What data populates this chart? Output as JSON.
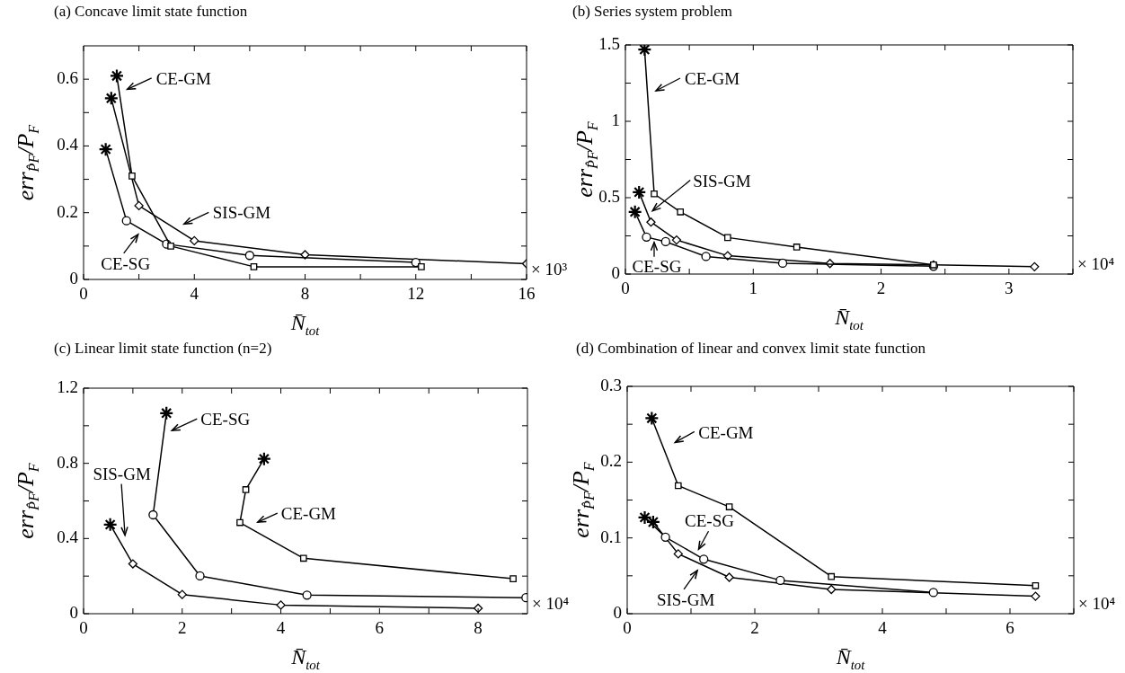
{
  "chart_data": [
    {
      "type": "line",
      "title": "(a) Concave limit state function",
      "xlabel": "N̄$_{tot}$",
      "ylabel": "err$_{P̂F}$/P$_{F}$",
      "xlim": [
        0,
        16
      ],
      "ylim": [
        0,
        0.7
      ],
      "xticks": [
        0,
        {
          "value": 2,
          "label": null
        },
        4,
        {
          "value": 6,
          "label": null
        },
        8,
        {
          "value": 10,
          "label": null
        },
        12,
        {
          "value": 14,
          "label": null
        },
        16
      ],
      "yticks": [
        0,
        {
          "value": 0.1,
          "label": null
        },
        0.2,
        {
          "value": 0.3,
          "label": null
        },
        0.4,
        {
          "value": 0.5,
          "label": null
        },
        0.6
      ],
      "series": [
        {
          "marker": "square",
          "color": "#000000",
          "x": [
            1.2,
            1.75,
            3.15,
            6.15,
            12.2
          ],
          "values": [
            0.61,
            0.31,
            0.1,
            0.038,
            0.038
          ]
        },
        {
          "marker": "circle",
          "color": "#000000",
          "x": [
            0.8,
            1.55,
            3.0,
            6.0,
            12.0
          ],
          "values": [
            0.39,
            0.176,
            0.106,
            0.072,
            0.051
          ]
        },
        {
          "marker": "diamond",
          "color": "#000000",
          "x": [
            1.0,
            2.0,
            4.0,
            8.0,
            16.0
          ],
          "values": [
            0.543,
            0.221,
            0.116,
            0.074,
            0.047
          ]
        },
        {
          "type": "scatter",
          "marker": "cross",
          "color": "#000000",
          "x": [
            1.2,
            0.8,
            1.0
          ],
          "values": [
            0.61,
            0.39,
            0.543
          ]
        }
      ],
      "annotations": [
        "CE-GM",
        "SIS-GM",
        "CE-SG",
        "× 10³"
      ]
    },
    {
      "type": "line",
      "title": "(b) Series system problem",
      "xlabel": "N̄$_{tot}$",
      "ylabel": "err$_{P̂F}$/P$_{F}$",
      "xlim": [
        0,
        3.5
      ],
      "ylim": [
        0,
        1.5
      ],
      "xticks": [
        0,
        {
          "value": 0.5,
          "label": null
        },
        1,
        {
          "value": 1.5,
          "label": null
        },
        2,
        {
          "value": 2.5,
          "label": null
        },
        3,
        {
          "value": 3.5,
          "label": null
        }
      ],
      "yticks": [
        0,
        {
          "value": 0.25,
          "label": null
        },
        0.5,
        {
          "value": 0.75,
          "label": null
        },
        1,
        {
          "value": 1.25,
          "label": null
        },
        1.5
      ],
      "series": [
        {
          "marker": "square",
          "color": "#000000",
          "x": [
            0.15,
            0.225,
            0.43,
            0.8,
            1.34,
            2.41
          ],
          "values": [
            1.47,
            0.525,
            0.407,
            0.239,
            0.177,
            0.06
          ]
        },
        {
          "marker": "circle",
          "color": "#000000",
          "x": [
            0.075,
            0.165,
            0.315,
            0.63,
            1.23,
            2.41
          ],
          "values": [
            0.407,
            0.242,
            0.212,
            0.115,
            0.071,
            0.051
          ]
        },
        {
          "marker": "diamond",
          "color": "#000000",
          "x": [
            0.107,
            0.2,
            0.4,
            0.8,
            1.6,
            2.41,
            3.2
          ],
          "values": [
            0.536,
            0.34,
            0.223,
            0.12,
            0.069,
            0.06,
            0.048
          ]
        },
        {
          "type": "scatter",
          "marker": "cross",
          "color": "#000000",
          "x": [
            0.15,
            0.075,
            0.107
          ],
          "values": [
            1.47,
            0.407,
            0.536
          ]
        }
      ],
      "annotations": [
        "CE-GM",
        "SIS-GM",
        "CE-SG",
        "× 10⁴"
      ]
    },
    {
      "type": "line",
      "title": "(c) Linear limit state function (n=2)",
      "xlabel": "N̄$_{tot}$",
      "ylabel": "err$_{P̂F}$/P$_{F}$",
      "xlim": [
        0,
        9
      ],
      "ylim": [
        0,
        1.2
      ],
      "xticks": [
        0,
        {
          "value": 1,
          "label": null
        },
        2,
        {
          "value": 3,
          "label": null
        },
        4,
        {
          "value": 5,
          "label": null
        },
        6,
        {
          "value": 7,
          "label": null
        },
        8
      ],
      "yticks": [
        0,
        {
          "value": 0.2,
          "label": null
        },
        0.4,
        {
          "value": 0.6,
          "label": null
        },
        0.8,
        {
          "value": 1,
          "label": null
        },
        1.2
      ],
      "series": [
        {
          "marker": "square",
          "color": "#000000",
          "x": [
            3.66,
            3.29,
            3.17,
            4.46,
            8.71
          ],
          "values": [
            0.824,
            0.66,
            0.485,
            0.295,
            0.186
          ]
        },
        {
          "marker": "circle",
          "color": "#000000",
          "x": [
            1.68,
            1.41,
            2.36,
            4.53,
            8.97
          ],
          "values": [
            1.067,
            0.526,
            0.201,
            0.099,
            0.085
          ]
        },
        {
          "marker": "diamond",
          "color": "#000000",
          "x": [
            0.54,
            1.0,
            2.0,
            4.0,
            8.0
          ],
          "values": [
            0.474,
            0.265,
            0.102,
            0.046,
            0.029
          ]
        },
        {
          "type": "scatter",
          "marker": "cross",
          "color": "#000000",
          "x": [
            3.66,
            1.68,
            0.54
          ],
          "values": [
            0.824,
            1.067,
            0.474
          ]
        }
      ],
      "annotations": [
        "CE-SG",
        "CE-GM",
        "SIS-GM",
        "× 10⁴"
      ]
    },
    {
      "type": "line",
      "title": "(d) Combination of linear and convex limit state function",
      "xlabel": "N̄$_{tot}$",
      "ylabel": "err$_{P̂F}$/P$_{F}$",
      "xlim": [
        0,
        7
      ],
      "ylim": [
        0,
        0.3
      ],
      "xticks": [
        0,
        {
          "value": 1,
          "label": null
        },
        2,
        {
          "value": 3,
          "label": null
        },
        4,
        {
          "value": 5,
          "label": null
        },
        6,
        {
          "value": 7,
          "label": null
        }
      ],
      "yticks": [
        0,
        {
          "value": 0.05,
          "label": null
        },
        0.1,
        {
          "value": 0.15,
          "label": null
        },
        0.2,
        {
          "value": 0.25,
          "label": null
        },
        0.3
      ],
      "series": [
        {
          "marker": "square",
          "color": "#000000",
          "x": [
            0.385,
            0.8,
            1.6,
            3.2,
            6.4
          ],
          "values": [
            0.258,
            0.169,
            0.141,
            0.049,
            0.037
          ]
        },
        {
          "marker": "circle",
          "color": "#000000",
          "x": [
            0.275,
            0.6,
            1.2,
            2.4,
            4.8
          ],
          "values": [
            0.127,
            0.101,
            0.072,
            0.044,
            0.028
          ]
        },
        {
          "marker": "diamond",
          "color": "#000000",
          "x": [
            0.407,
            0.8,
            1.6,
            3.2,
            6.4
          ],
          "values": [
            0.121,
            0.079,
            0.048,
            0.032,
            0.023
          ]
        },
        {
          "type": "scatter",
          "marker": "cross",
          "color": "#000000",
          "x": [
            0.385,
            0.275,
            0.407
          ],
          "values": [
            0.258,
            0.127,
            0.121
          ]
        }
      ],
      "annotations": [
        "CE-GM",
        "CE-SG",
        "SIS-GM",
        "× 10⁴"
      ]
    }
  ]
}
